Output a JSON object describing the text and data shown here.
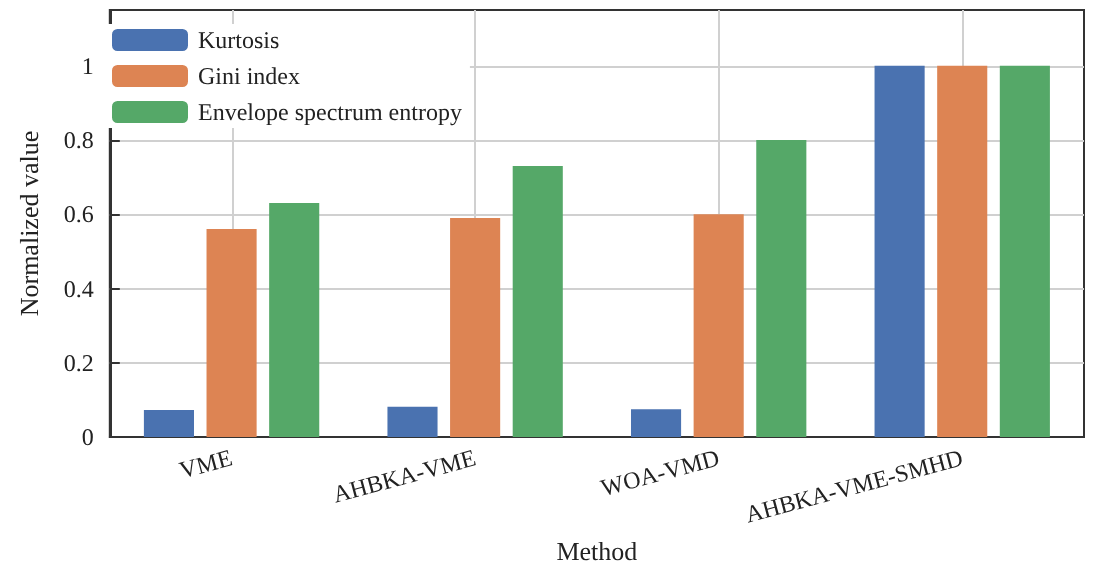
{
  "chart_data": {
    "type": "bar",
    "xlabel": "Method",
    "ylabel": "Normalized value",
    "categories": [
      "VME",
      "AHBKA-VME",
      "WOA-VMD",
      "AHBKA-VME-SMHD"
    ],
    "series": [
      {
        "name": "Kurtosis",
        "color": "#4a72b0",
        "values": [
          0.073,
          0.082,
          0.075,
          1
        ]
      },
      {
        "name": "Gini index",
        "color": "#dd8453",
        "values": [
          0.56,
          0.59,
          0.6,
          1
        ]
      },
      {
        "name": "Envelope spectrum entropy",
        "color": "#55a868",
        "values": [
          0.63,
          0.73,
          0.8,
          1
        ]
      }
    ],
    "ylim": [
      0,
      1.15
    ],
    "yticks": [
      0,
      0.2,
      0.4,
      0.6,
      0.8,
      1
    ],
    "grid": true,
    "legend": "top left"
  }
}
